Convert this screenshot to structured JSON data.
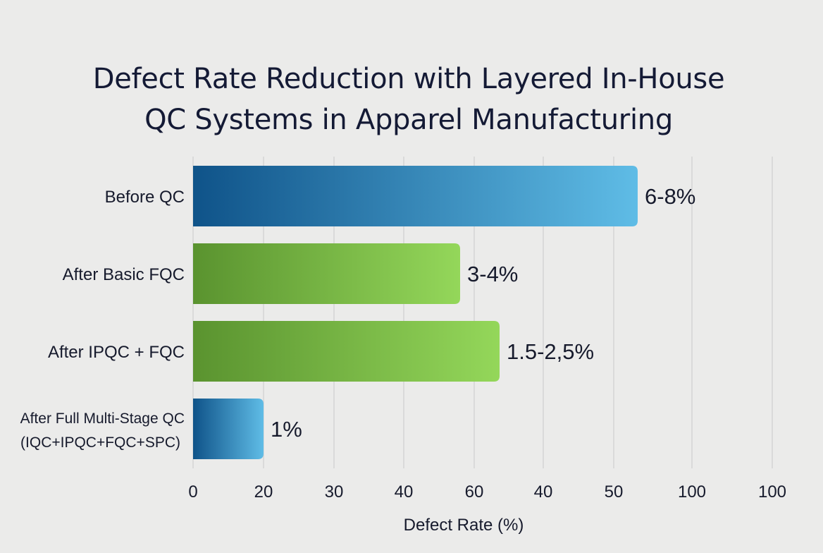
{
  "chart_data": {
    "type": "bar",
    "orientation": "horizontal",
    "title": "Defect Rate Reduction with Layered In-House QC Systems in Apparel Manufacturing",
    "title_lines": [
      "Defect Rate Reduction with Layered In-House",
      "QC Systems in Apparel Manufacturing"
    ],
    "xlabel": "Defect Rate (%)",
    "ylabel": "",
    "categories": [
      [
        "Before QC"
      ],
      [
        "After Basic FQC"
      ],
      [
        "After IPQC + FQC"
      ],
      [
        "After Full Multi-Stage QC",
        "(IQC+IPQC+FQC+SPC)"
      ]
    ],
    "values": [
      53,
      58,
      64,
      20
    ],
    "value_axis": "bar ends read against the printed tick positions",
    "data_labels": [
      "6-8%",
      "3-4%",
      "1.5-2,5%",
      "1%"
    ],
    "bar_styles": [
      "blue",
      "green",
      "green",
      "blue"
    ],
    "x_ticks": [
      "0",
      "20",
      "30",
      "40",
      "60",
      "40",
      "50",
      "100",
      "100"
    ],
    "grid": "vertical",
    "legend": "none",
    "colors": {
      "blue_dark": "#0f5389",
      "blue_light": "#5fbce6",
      "green_dark": "#5a932f",
      "green_light": "#94d75a",
      "grid": "#cfcfcf",
      "background": "#ebebea"
    }
  }
}
